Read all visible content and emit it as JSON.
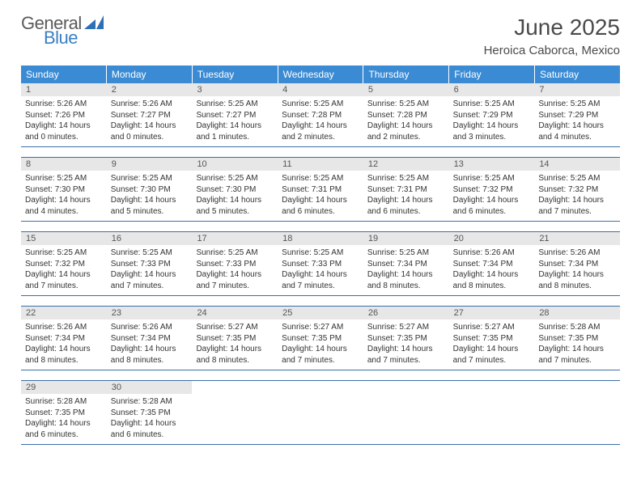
{
  "logo": {
    "word1": "General",
    "word2": "Blue",
    "mark_color": "#2f6fb5"
  },
  "title": "June 2025",
  "location": "Heroica Caborca, Mexico",
  "colors": {
    "header_bg": "#3b8bd4",
    "header_text": "#ffffff",
    "daynum_bg": "#e7e7e7",
    "daynum_text": "#555555",
    "rule": "#3b6fa8",
    "body_text": "#333333"
  },
  "day_headers": [
    "Sunday",
    "Monday",
    "Tuesday",
    "Wednesday",
    "Thursday",
    "Friday",
    "Saturday"
  ],
  "weeks": [
    [
      {
        "n": "1",
        "sr": "5:26 AM",
        "ss": "7:26 PM",
        "dh": "14",
        "dm": "0"
      },
      {
        "n": "2",
        "sr": "5:26 AM",
        "ss": "7:27 PM",
        "dh": "14",
        "dm": "0"
      },
      {
        "n": "3",
        "sr": "5:25 AM",
        "ss": "7:27 PM",
        "dh": "14",
        "dm": "1"
      },
      {
        "n": "4",
        "sr": "5:25 AM",
        "ss": "7:28 PM",
        "dh": "14",
        "dm": "2"
      },
      {
        "n": "5",
        "sr": "5:25 AM",
        "ss": "7:28 PM",
        "dh": "14",
        "dm": "2"
      },
      {
        "n": "6",
        "sr": "5:25 AM",
        "ss": "7:29 PM",
        "dh": "14",
        "dm": "3"
      },
      {
        "n": "7",
        "sr": "5:25 AM",
        "ss": "7:29 PM",
        "dh": "14",
        "dm": "4"
      }
    ],
    [
      {
        "n": "8",
        "sr": "5:25 AM",
        "ss": "7:30 PM",
        "dh": "14",
        "dm": "4"
      },
      {
        "n": "9",
        "sr": "5:25 AM",
        "ss": "7:30 PM",
        "dh": "14",
        "dm": "5"
      },
      {
        "n": "10",
        "sr": "5:25 AM",
        "ss": "7:30 PM",
        "dh": "14",
        "dm": "5"
      },
      {
        "n": "11",
        "sr": "5:25 AM",
        "ss": "7:31 PM",
        "dh": "14",
        "dm": "6"
      },
      {
        "n": "12",
        "sr": "5:25 AM",
        "ss": "7:31 PM",
        "dh": "14",
        "dm": "6"
      },
      {
        "n": "13",
        "sr": "5:25 AM",
        "ss": "7:32 PM",
        "dh": "14",
        "dm": "6"
      },
      {
        "n": "14",
        "sr": "5:25 AM",
        "ss": "7:32 PM",
        "dh": "14",
        "dm": "7"
      }
    ],
    [
      {
        "n": "15",
        "sr": "5:25 AM",
        "ss": "7:32 PM",
        "dh": "14",
        "dm": "7"
      },
      {
        "n": "16",
        "sr": "5:25 AM",
        "ss": "7:33 PM",
        "dh": "14",
        "dm": "7"
      },
      {
        "n": "17",
        "sr": "5:25 AM",
        "ss": "7:33 PM",
        "dh": "14",
        "dm": "7"
      },
      {
        "n": "18",
        "sr": "5:25 AM",
        "ss": "7:33 PM",
        "dh": "14",
        "dm": "7"
      },
      {
        "n": "19",
        "sr": "5:25 AM",
        "ss": "7:34 PM",
        "dh": "14",
        "dm": "8"
      },
      {
        "n": "20",
        "sr": "5:26 AM",
        "ss": "7:34 PM",
        "dh": "14",
        "dm": "8"
      },
      {
        "n": "21",
        "sr": "5:26 AM",
        "ss": "7:34 PM",
        "dh": "14",
        "dm": "8"
      }
    ],
    [
      {
        "n": "22",
        "sr": "5:26 AM",
        "ss": "7:34 PM",
        "dh": "14",
        "dm": "8"
      },
      {
        "n": "23",
        "sr": "5:26 AM",
        "ss": "7:34 PM",
        "dh": "14",
        "dm": "8"
      },
      {
        "n": "24",
        "sr": "5:27 AM",
        "ss": "7:35 PM",
        "dh": "14",
        "dm": "8"
      },
      {
        "n": "25",
        "sr": "5:27 AM",
        "ss": "7:35 PM",
        "dh": "14",
        "dm": "7"
      },
      {
        "n": "26",
        "sr": "5:27 AM",
        "ss": "7:35 PM",
        "dh": "14",
        "dm": "7"
      },
      {
        "n": "27",
        "sr": "5:27 AM",
        "ss": "7:35 PM",
        "dh": "14",
        "dm": "7"
      },
      {
        "n": "28",
        "sr": "5:28 AM",
        "ss": "7:35 PM",
        "dh": "14",
        "dm": "7"
      }
    ],
    [
      {
        "n": "29",
        "sr": "5:28 AM",
        "ss": "7:35 PM",
        "dh": "14",
        "dm": "6"
      },
      {
        "n": "30",
        "sr": "5:28 AM",
        "ss": "7:35 PM",
        "dh": "14",
        "dm": "6"
      },
      null,
      null,
      null,
      null,
      null
    ]
  ],
  "labels": {
    "sunrise": "Sunrise:",
    "sunset": "Sunset:",
    "daylight": "Daylight:",
    "hours": "hours",
    "and": "and",
    "minutes_word": "minutes."
  }
}
